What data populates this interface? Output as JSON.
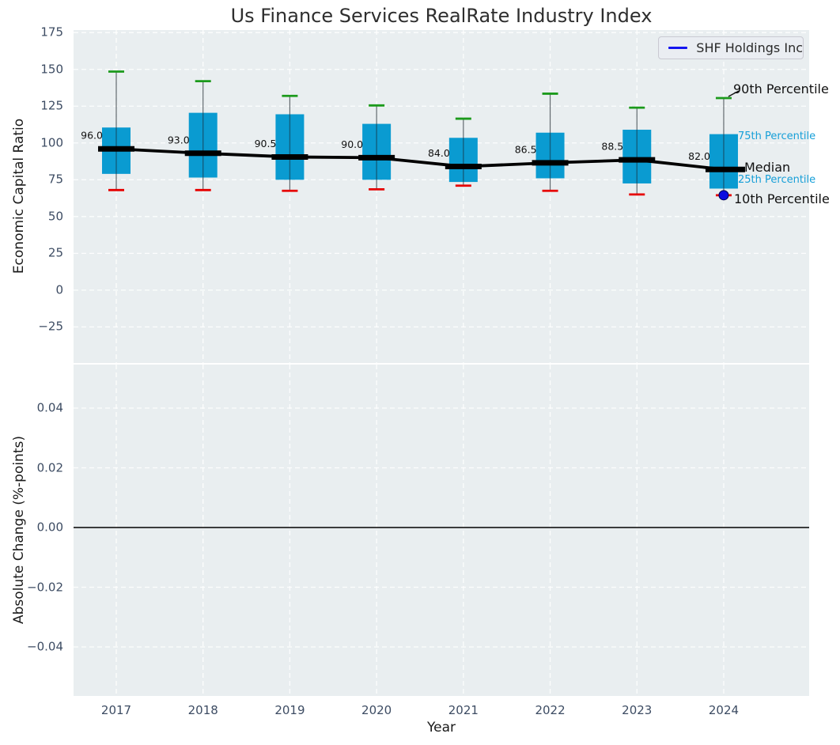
{
  "title": "Us Finance Services RealRate Industry Index",
  "legend": {
    "series": "SHF Holdings Inc"
  },
  "top_axis": {
    "ylabel": "Economic Capital Ratio",
    "ytick_values": [
      175,
      150,
      125,
      100,
      75,
      50,
      25,
      0,
      -25
    ],
    "ytick_labels": [
      "175",
      "150",
      "125",
      "100",
      "75",
      "50",
      "25",
      "0",
      "−25"
    ]
  },
  "bottom_axis": {
    "ylabel": "Absolute Change (%-points)",
    "xlabel": "Year",
    "ytick_values": [
      0.04,
      0.02,
      0.0,
      -0.02,
      -0.04
    ],
    "ytick_labels": [
      "0.04",
      "0.02",
      "0.00",
      "−0.02",
      "−0.04"
    ],
    "xtick_labels": [
      "2017",
      "2018",
      "2019",
      "2020",
      "2021",
      "2022",
      "2023",
      "2024"
    ]
  },
  "annotations": [
    {
      "text": "90th Percentile",
      "kind": "major",
      "anchor": "p90",
      "x": 927,
      "dy": -11
    },
    {
      "text": "75th Percentile",
      "kind": "minor",
      "anchor": "p75",
      "x": 933,
      "dy": 3
    },
    {
      "text": "Median",
      "kind": "major",
      "anchor": "median",
      "x": 941,
      "dy": -2
    },
    {
      "text": "25th Percentile",
      "kind": "minor",
      "anchor": "p25",
      "x": 933,
      "dy": -10
    },
    {
      "text": "10th Percentile",
      "kind": "major",
      "anchor": "p10",
      "x": 928,
      "dy": 5
    }
  ],
  "colors": {
    "box_fill": "#0a9bd1",
    "whisker": "#61696e",
    "p90_cap": "#1b9a1b",
    "p10_cap": "#e60000",
    "median_line": "#000000",
    "company_marker": "#0d0de0",
    "company_marker_edge": "#000050",
    "legend_line": "#1414f0",
    "panel_bg": "#e9eef0",
    "grid": "#ffffff",
    "tick_text": "#3d4c63",
    "annotation_minor": "#169fd8",
    "title_text": "#2e2e2e"
  },
  "chart_data": [
    {
      "type": "boxplot",
      "panel": "top",
      "title": "Us Finance Services RealRate Industry Index",
      "xlabel": "Year",
      "ylabel": "Economic Capital Ratio",
      "categories": [
        "2017",
        "2018",
        "2019",
        "2020",
        "2021",
        "2022",
        "2023",
        "2024"
      ],
      "ylim": [
        -49.5,
        176.6
      ],
      "yticks": [
        175,
        150,
        125,
        100,
        75,
        50,
        25,
        0,
        -25
      ],
      "grid": true,
      "legend_position": "upper right",
      "boxes": [
        {
          "year": "2017",
          "p10": 68.0,
          "p25": 79.0,
          "median": 96.0,
          "p75": 110.5,
          "p90": 148.5
        },
        {
          "year": "2018",
          "p10": 68.0,
          "p25": 76.5,
          "median": 93.0,
          "p75": 120.5,
          "p90": 142.0
        },
        {
          "year": "2019",
          "p10": 67.5,
          "p25": 75.0,
          "median": 90.5,
          "p75": 119.5,
          "p90": 132.0
        },
        {
          "year": "2020",
          "p10": 68.5,
          "p25": 75.0,
          "median": 90.0,
          "p75": 113.0,
          "p90": 125.5
        },
        {
          "year": "2021",
          "p10": 71.0,
          "p25": 73.5,
          "median": 84.0,
          "p75": 103.5,
          "p90": 116.5
        },
        {
          "year": "2022",
          "p10": 67.5,
          "p25": 76.0,
          "median": 86.5,
          "p75": 107.0,
          "p90": 133.5
        },
        {
          "year": "2023",
          "p10": 65.0,
          "p25": 72.5,
          "median": 88.5,
          "p75": 109.0,
          "p90": 124.0
        },
        {
          "year": "2024",
          "p10": 64.5,
          "p25": 69.0,
          "median": 82.0,
          "p75": 106.0,
          "p90": 130.5
        }
      ],
      "median_labels": [
        "96.0",
        "93.0",
        "90.5",
        "90.0",
        "84.0",
        "86.5",
        "88.5",
        "82.0"
      ],
      "median_trend_line": [
        96.0,
        93.0,
        90.5,
        90.0,
        84.0,
        86.5,
        88.5,
        82.0
      ],
      "company_point": {
        "series": "SHF Holdings Inc",
        "year": "2024",
        "value": 64.5
      }
    },
    {
      "type": "line",
      "panel": "bottom",
      "ylabel": "Absolute Change (%-points)",
      "ylim": [
        -0.0565,
        0.0546
      ],
      "yticks": [
        0.04,
        0.02,
        0.0,
        -0.02,
        -0.04
      ],
      "grid": true,
      "zero_line": 0.0,
      "series": []
    }
  ]
}
